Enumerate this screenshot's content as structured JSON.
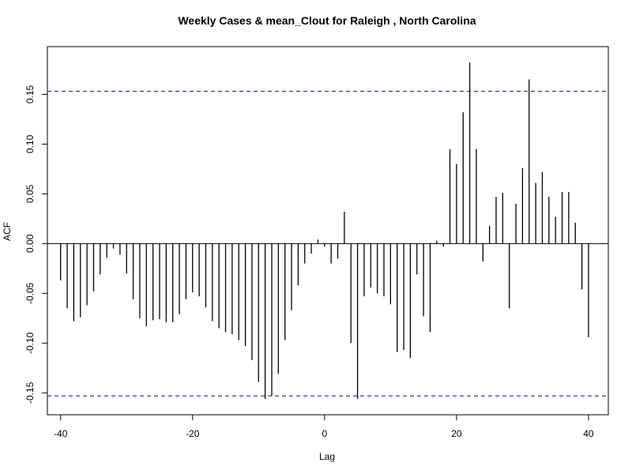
{
  "chart_data": {
    "type": "bar",
    "title": "Weekly Cases & mean_Clout for Raleigh , North Carolina",
    "xlabel": "Lag",
    "ylabel": "ACF",
    "xlim": [
      -42,
      43
    ],
    "ylim": [
      -0.172,
      0.198
    ],
    "x_ticks": [
      -40,
      -20,
      0,
      20,
      40
    ],
    "y_ticks": [
      -0.15,
      -0.1,
      -0.05,
      0.0,
      0.05,
      0.1,
      0.15
    ],
    "y_tick_labels": [
      "-0.15",
      "-0.10",
      "-0.05",
      "0.00",
      "0.05",
      "0.10",
      "0.15"
    ],
    "confidence_bound": 0.153,
    "confidence_color": "#0000cc",
    "bar_color": "#000000",
    "grid": false,
    "lags": [
      -40,
      -39,
      -38,
      -37,
      -36,
      -35,
      -34,
      -33,
      -32,
      -31,
      -30,
      -29,
      -28,
      -27,
      -26,
      -25,
      -24,
      -23,
      -22,
      -21,
      -20,
      -19,
      -18,
      -17,
      -16,
      -15,
      -14,
      -13,
      -12,
      -11,
      -10,
      -9,
      -8,
      -7,
      -6,
      -5,
      -4,
      -3,
      -2,
      -1,
      0,
      1,
      2,
      3,
      4,
      5,
      6,
      7,
      8,
      9,
      10,
      11,
      12,
      13,
      14,
      15,
      16,
      17,
      18,
      19,
      20,
      21,
      22,
      23,
      24,
      25,
      26,
      27,
      28,
      29,
      30,
      31,
      32,
      33,
      34,
      35,
      36,
      37,
      38,
      39,
      40
    ],
    "acf": [
      -0.037,
      -0.065,
      -0.078,
      -0.074,
      -0.062,
      -0.048,
      -0.031,
      -0.014,
      -0.005,
      -0.011,
      -0.03,
      -0.056,
      -0.075,
      -0.083,
      -0.077,
      -0.076,
      -0.079,
      -0.079,
      -0.071,
      -0.056,
      -0.049,
      -0.053,
      -0.064,
      -0.078,
      -0.085,
      -0.089,
      -0.091,
      -0.097,
      -0.103,
      -0.117,
      -0.139,
      -0.156,
      -0.153,
      -0.131,
      -0.097,
      -0.067,
      -0.042,
      -0.02,
      -0.01,
      0.004,
      -0.003,
      -0.02,
      -0.015,
      0.032,
      -0.1,
      -0.156,
      -0.053,
      -0.044,
      -0.05,
      -0.053,
      -0.061,
      -0.109,
      -0.107,
      -0.115,
      -0.031,
      -0.073,
      -0.089,
      0.003,
      -0.003,
      0.095,
      0.08,
      0.132,
      0.182,
      0.095,
      -0.018,
      0.018,
      0.047,
      0.051,
      -0.065,
      0.04,
      0.076,
      0.165,
      0.061,
      0.072,
      0.047,
      0.027,
      0.052,
      0.052,
      0.021,
      -0.046,
      -0.094
    ]
  }
}
